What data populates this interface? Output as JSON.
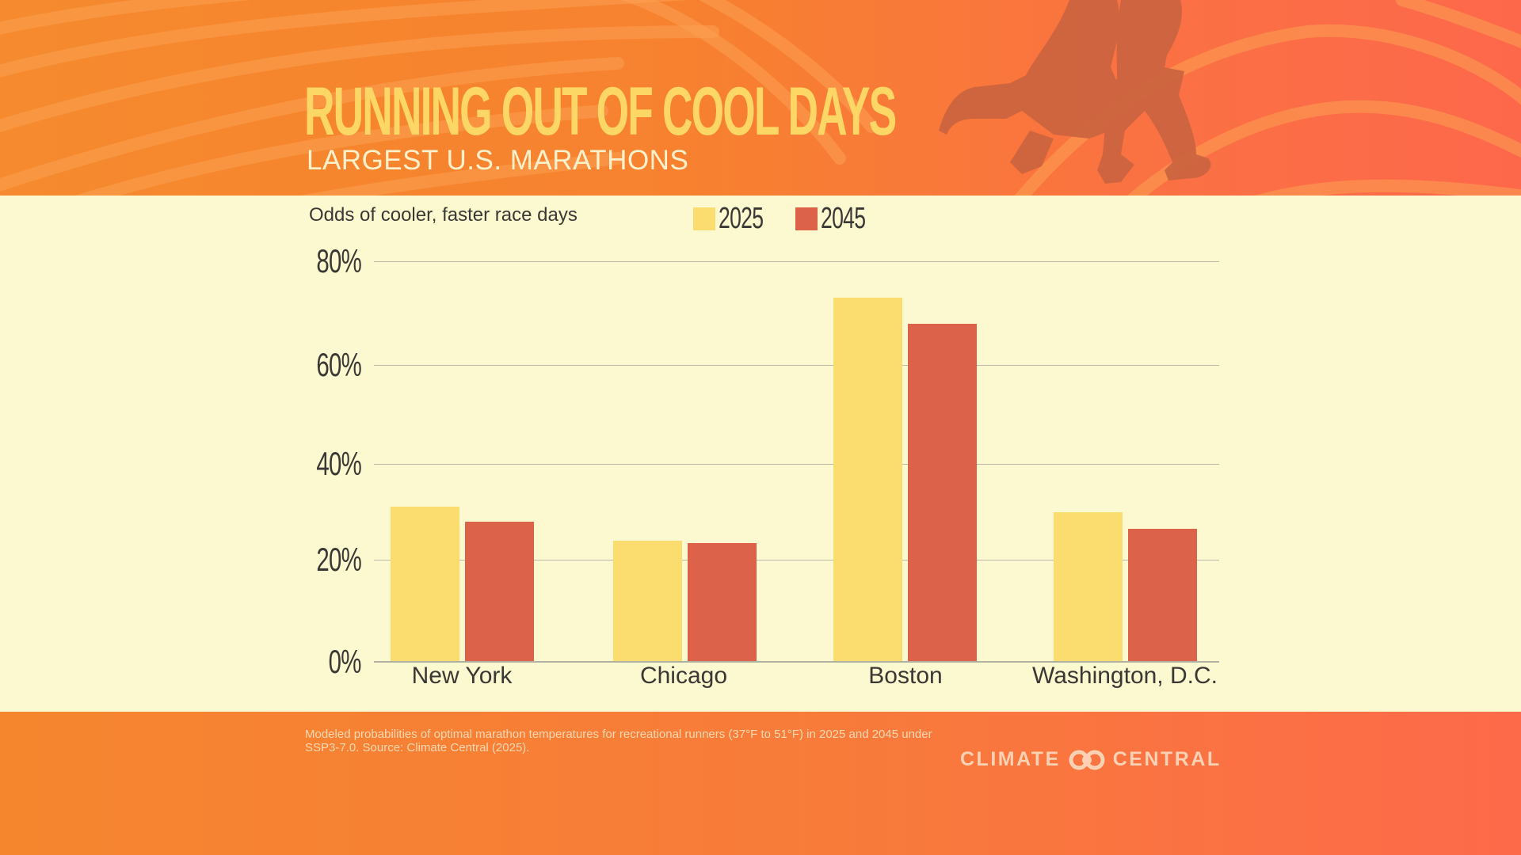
{
  "header": {
    "title": "RUNNING OUT OF COOL DAYS",
    "subtitle": "LARGEST U.S. MARATHONS",
    "decoration": "runner-silhouettes"
  },
  "chart": {
    "caption": "Odds of cooler, faster race days",
    "legend": [
      {
        "label": "2025",
        "color": "#fbdc6e"
      },
      {
        "label": "2045",
        "color": "#dc634a"
      }
    ],
    "y_ticks": [
      "80%",
      "60%",
      "40%",
      "20%",
      "0%"
    ],
    "categories": [
      "New York",
      "Chicago",
      "Boston",
      "Washington, D.C."
    ]
  },
  "chart_data": {
    "type": "bar",
    "title": "RUNNING OUT OF COOL DAYS",
    "subtitle": "LARGEST U.S. MARATHONS",
    "ylabel": "Odds of cooler, faster race days",
    "xlabel": "",
    "categories": [
      "New York",
      "Chicago",
      "Boston",
      "Washington, D.C."
    ],
    "series": [
      {
        "name": "2025",
        "color": "#fbdc6e",
        "values": [
          31,
          24,
          73,
          30
        ]
      },
      {
        "name": "2045",
        "color": "#dc634a",
        "values": [
          28,
          23.5,
          68,
          26.5
        ]
      }
    ],
    "ylim": [
      0,
      80
    ],
    "yticks": [
      0,
      20,
      40,
      60,
      80
    ],
    "ytick_format": "percent",
    "grid": true,
    "legend_position": "top"
  },
  "footer": {
    "note": "Modeled probabilities of optimal marathon temperatures for recreational runners (37°F to 51°F) in 2025 and 2045 under SSP3-7.0.  Source: Climate Central (2025).",
    "brand_left": "CLIMATE",
    "brand_right": "CENTRAL"
  },
  "colors": {
    "title": "#fdd766",
    "panel_bg": "#fcf9d0",
    "header_orange": "#f7812f",
    "header_red": "#fd684b",
    "bar_2025": "#fbdc6e",
    "bar_2045": "#dc634a",
    "text_dark": "#3a3835"
  }
}
